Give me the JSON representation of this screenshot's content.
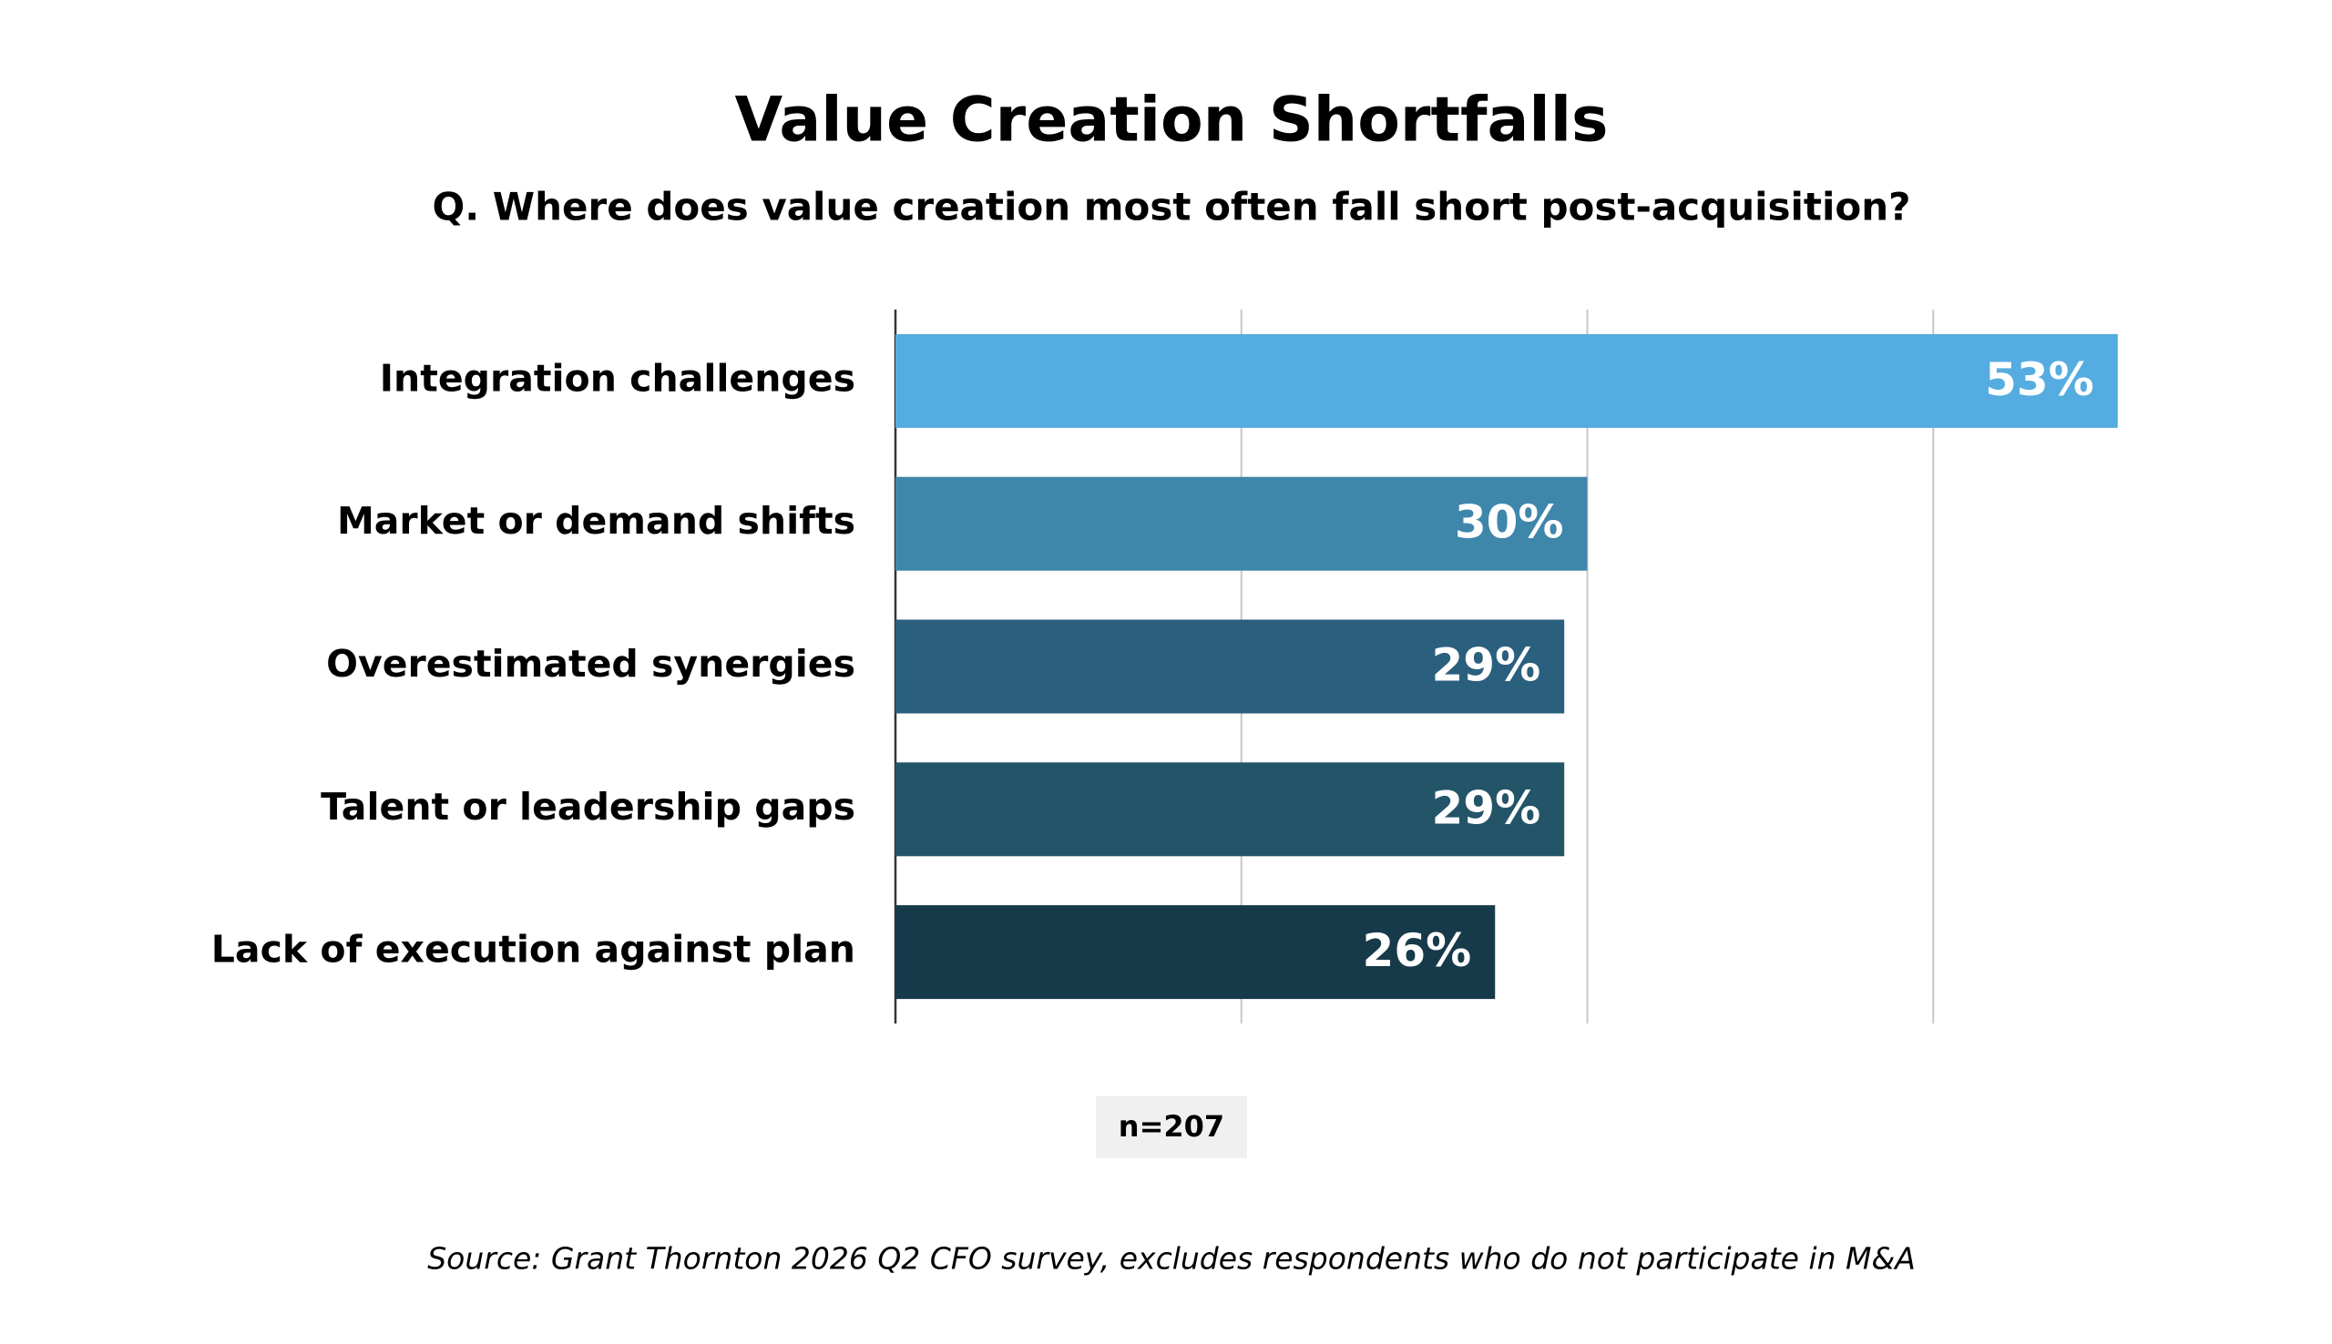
{
  "chart_data": {
    "type": "hbar",
    "title": "Value Creation Shortfalls",
    "subtitle": "Q. Where does value creation most often fall short post-acquisition?",
    "categories": [
      "Integration challenges",
      "Market or demand shifts",
      "Overestimated synergies",
      "Talent or leadership gaps",
      "Lack of execution against plan"
    ],
    "values": [
      53,
      30,
      29,
      29,
      26
    ],
    "value_labels": [
      "53%",
      "30%",
      "29%",
      "29%",
      "26%"
    ],
    "colors": [
      "#55ace0",
      "#3f86ab",
      "#2b5f7e",
      "#235468",
      "#173a4a"
    ],
    "xlim": [
      0,
      60
    ],
    "xticks": [
      0,
      15,
      30,
      45
    ],
    "grid": true,
    "note": "n=207",
    "source": "Source: Grant Thornton 2026 Q2 CFO survey, excludes respondents who do not participate in M&A"
  }
}
